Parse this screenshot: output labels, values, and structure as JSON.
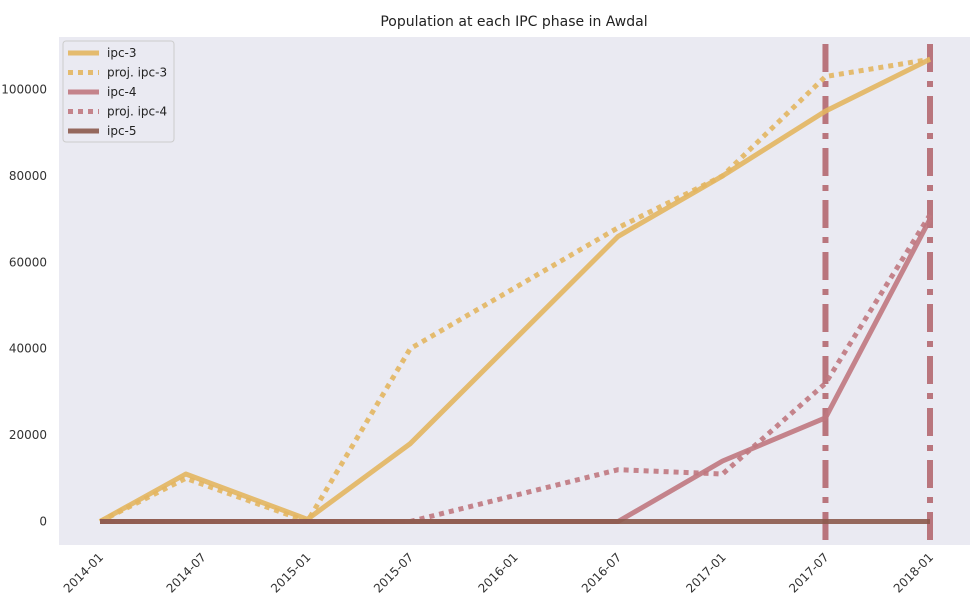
{
  "chart_data": {
    "type": "line",
    "title": "Population at each IPC phase in Awdal",
    "xlabel": "",
    "ylabel": "",
    "x_ticks": [
      "2014-01",
      "2014-07",
      "2015-01",
      "2015-07",
      "2016-01",
      "2016-07",
      "2017-01",
      "2017-07",
      "2018-01"
    ],
    "x_range": [
      "2014-01-01",
      "2018-01-01"
    ],
    "ylim": [
      -5000,
      112000
    ],
    "y_ticks": [
      0,
      20000,
      40000,
      60000,
      80000,
      100000
    ],
    "grid": false,
    "legend_position": "top-left",
    "background_color": "#eaeaf2",
    "series": [
      {
        "name": "ipc-3",
        "style": "solid",
        "color": "#e3b660",
        "points": [
          {
            "x": "2014-01-01",
            "y": 0
          },
          {
            "x": "2014-06-01",
            "y": 11000
          },
          {
            "x": "2015-01-01",
            "y": 500
          },
          {
            "x": "2015-07-01",
            "y": 18000
          },
          {
            "x": "2016-07-01",
            "y": 66000
          },
          {
            "x": "2017-01-01",
            "y": 80000
          },
          {
            "x": "2017-07-01",
            "y": 95000
          },
          {
            "x": "2018-01-01",
            "y": 107000
          }
        ]
      },
      {
        "name": "proj. ipc-3",
        "style": "dotted",
        "color": "#e3b660",
        "points": [
          {
            "x": "2014-01-01",
            "y": 0
          },
          {
            "x": "2014-06-01",
            "y": 10000
          },
          {
            "x": "2015-01-01",
            "y": 0
          },
          {
            "x": "2015-07-01",
            "y": 40000
          },
          {
            "x": "2016-07-01",
            "y": 68000
          },
          {
            "x": "2017-01-01",
            "y": 80000
          },
          {
            "x": "2017-07-01",
            "y": 103000
          },
          {
            "x": "2018-01-01",
            "y": 107000
          }
        ]
      },
      {
        "name": "ipc-4",
        "style": "solid",
        "color": "#c07880",
        "points": [
          {
            "x": "2014-01-01",
            "y": 0
          },
          {
            "x": "2016-07-01",
            "y": 0
          },
          {
            "x": "2017-01-01",
            "y": 14000
          },
          {
            "x": "2017-07-01",
            "y": 24000
          },
          {
            "x": "2018-01-01",
            "y": 70000
          }
        ]
      },
      {
        "name": "proj. ipc-4",
        "style": "dotted",
        "color": "#c07880",
        "points": [
          {
            "x": "2014-01-01",
            "y": 0
          },
          {
            "x": "2015-07-01",
            "y": 0
          },
          {
            "x": "2016-07-01",
            "y": 12000
          },
          {
            "x": "2017-01-01",
            "y": 11000
          },
          {
            "x": "2017-07-01",
            "y": 32000
          },
          {
            "x": "2018-01-01",
            "y": 71000
          }
        ]
      },
      {
        "name": "ipc-5",
        "style": "solid",
        "color": "#8c5a4c",
        "points": [
          {
            "x": "2014-01-01",
            "y": 0
          },
          {
            "x": "2018-01-01",
            "y": 0
          }
        ]
      }
    ],
    "vertical_markers": [
      {
        "x": "2017-07-01",
        "style": "dashdot",
        "color": "#b06068"
      },
      {
        "x": "2018-01-01",
        "style": "dashdot",
        "color": "#b06068"
      }
    ]
  }
}
